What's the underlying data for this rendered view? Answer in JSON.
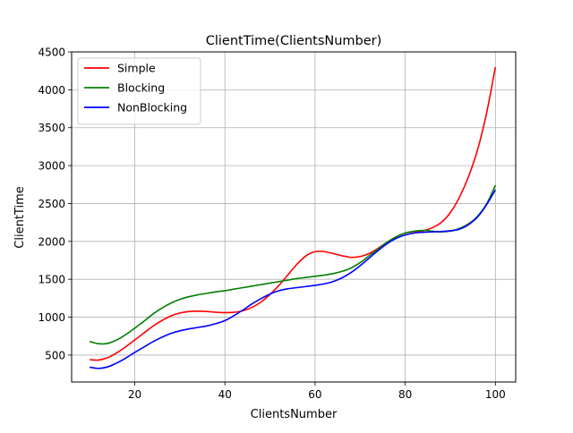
{
  "chart_data": {
    "type": "line",
    "title": "ClientTime(ClientsNumber)",
    "xlabel": "ClientsNumber",
    "ylabel": "ClientTime",
    "xlim": [
      6,
      104.5
    ],
    "ylim": [
      145,
      4500
    ],
    "xticks": [
      20,
      40,
      60,
      80,
      100
    ],
    "yticks": [
      500,
      1000,
      1500,
      2000,
      2500,
      3000,
      3500,
      4000,
      4500
    ],
    "grid": true,
    "legend_position": "upper-left",
    "x": [
      10,
      12,
      14,
      16,
      18,
      20,
      22,
      24,
      26,
      28,
      30,
      32,
      34,
      36,
      38,
      40,
      42,
      44,
      46,
      48,
      50,
      52,
      54,
      56,
      58,
      60,
      62,
      64,
      66,
      68,
      70,
      72,
      74,
      76,
      78,
      80,
      82,
      84,
      86,
      88,
      90,
      92,
      94,
      96,
      98,
      100
    ],
    "series": [
      {
        "name": "Simple",
        "color": "#ff0000",
        "values": [
          440,
          435,
          465,
          530,
          610,
          700,
          790,
          880,
          955,
          1015,
          1055,
          1075,
          1080,
          1075,
          1065,
          1060,
          1065,
          1085,
          1130,
          1200,
          1300,
          1420,
          1560,
          1700,
          1810,
          1865,
          1865,
          1840,
          1810,
          1790,
          1800,
          1840,
          1910,
          1990,
          2060,
          2110,
          2130,
          2140,
          2180,
          2250,
          2380,
          2580,
          2850,
          3200,
          3680,
          4300
        ]
      },
      {
        "name": "Blocking",
        "color": "#008000",
        "values": [
          680,
          650,
          655,
          700,
          770,
          855,
          945,
          1040,
          1120,
          1185,
          1235,
          1270,
          1295,
          1315,
          1335,
          1350,
          1370,
          1390,
          1410,
          1430,
          1450,
          1470,
          1490,
          1510,
          1525,
          1540,
          1555,
          1575,
          1605,
          1650,
          1720,
          1810,
          1900,
          1990,
          2060,
          2110,
          2135,
          2145,
          2135,
          2125,
          2135,
          2170,
          2230,
          2330,
          2490,
          2740
        ]
      },
      {
        "name": "NonBlocking",
        "color": "#0000ff",
        "values": [
          340,
          325,
          345,
          395,
          460,
          535,
          605,
          675,
          735,
          785,
          820,
          845,
          865,
          885,
          915,
          955,
          1020,
          1095,
          1175,
          1245,
          1305,
          1350,
          1375,
          1390,
          1405,
          1420,
          1440,
          1470,
          1520,
          1590,
          1680,
          1780,
          1880,
          1970,
          2040,
          2085,
          2110,
          2120,
          2125,
          2130,
          2140,
          2160,
          2220,
          2320,
          2480,
          2680
        ]
      }
    ]
  }
}
